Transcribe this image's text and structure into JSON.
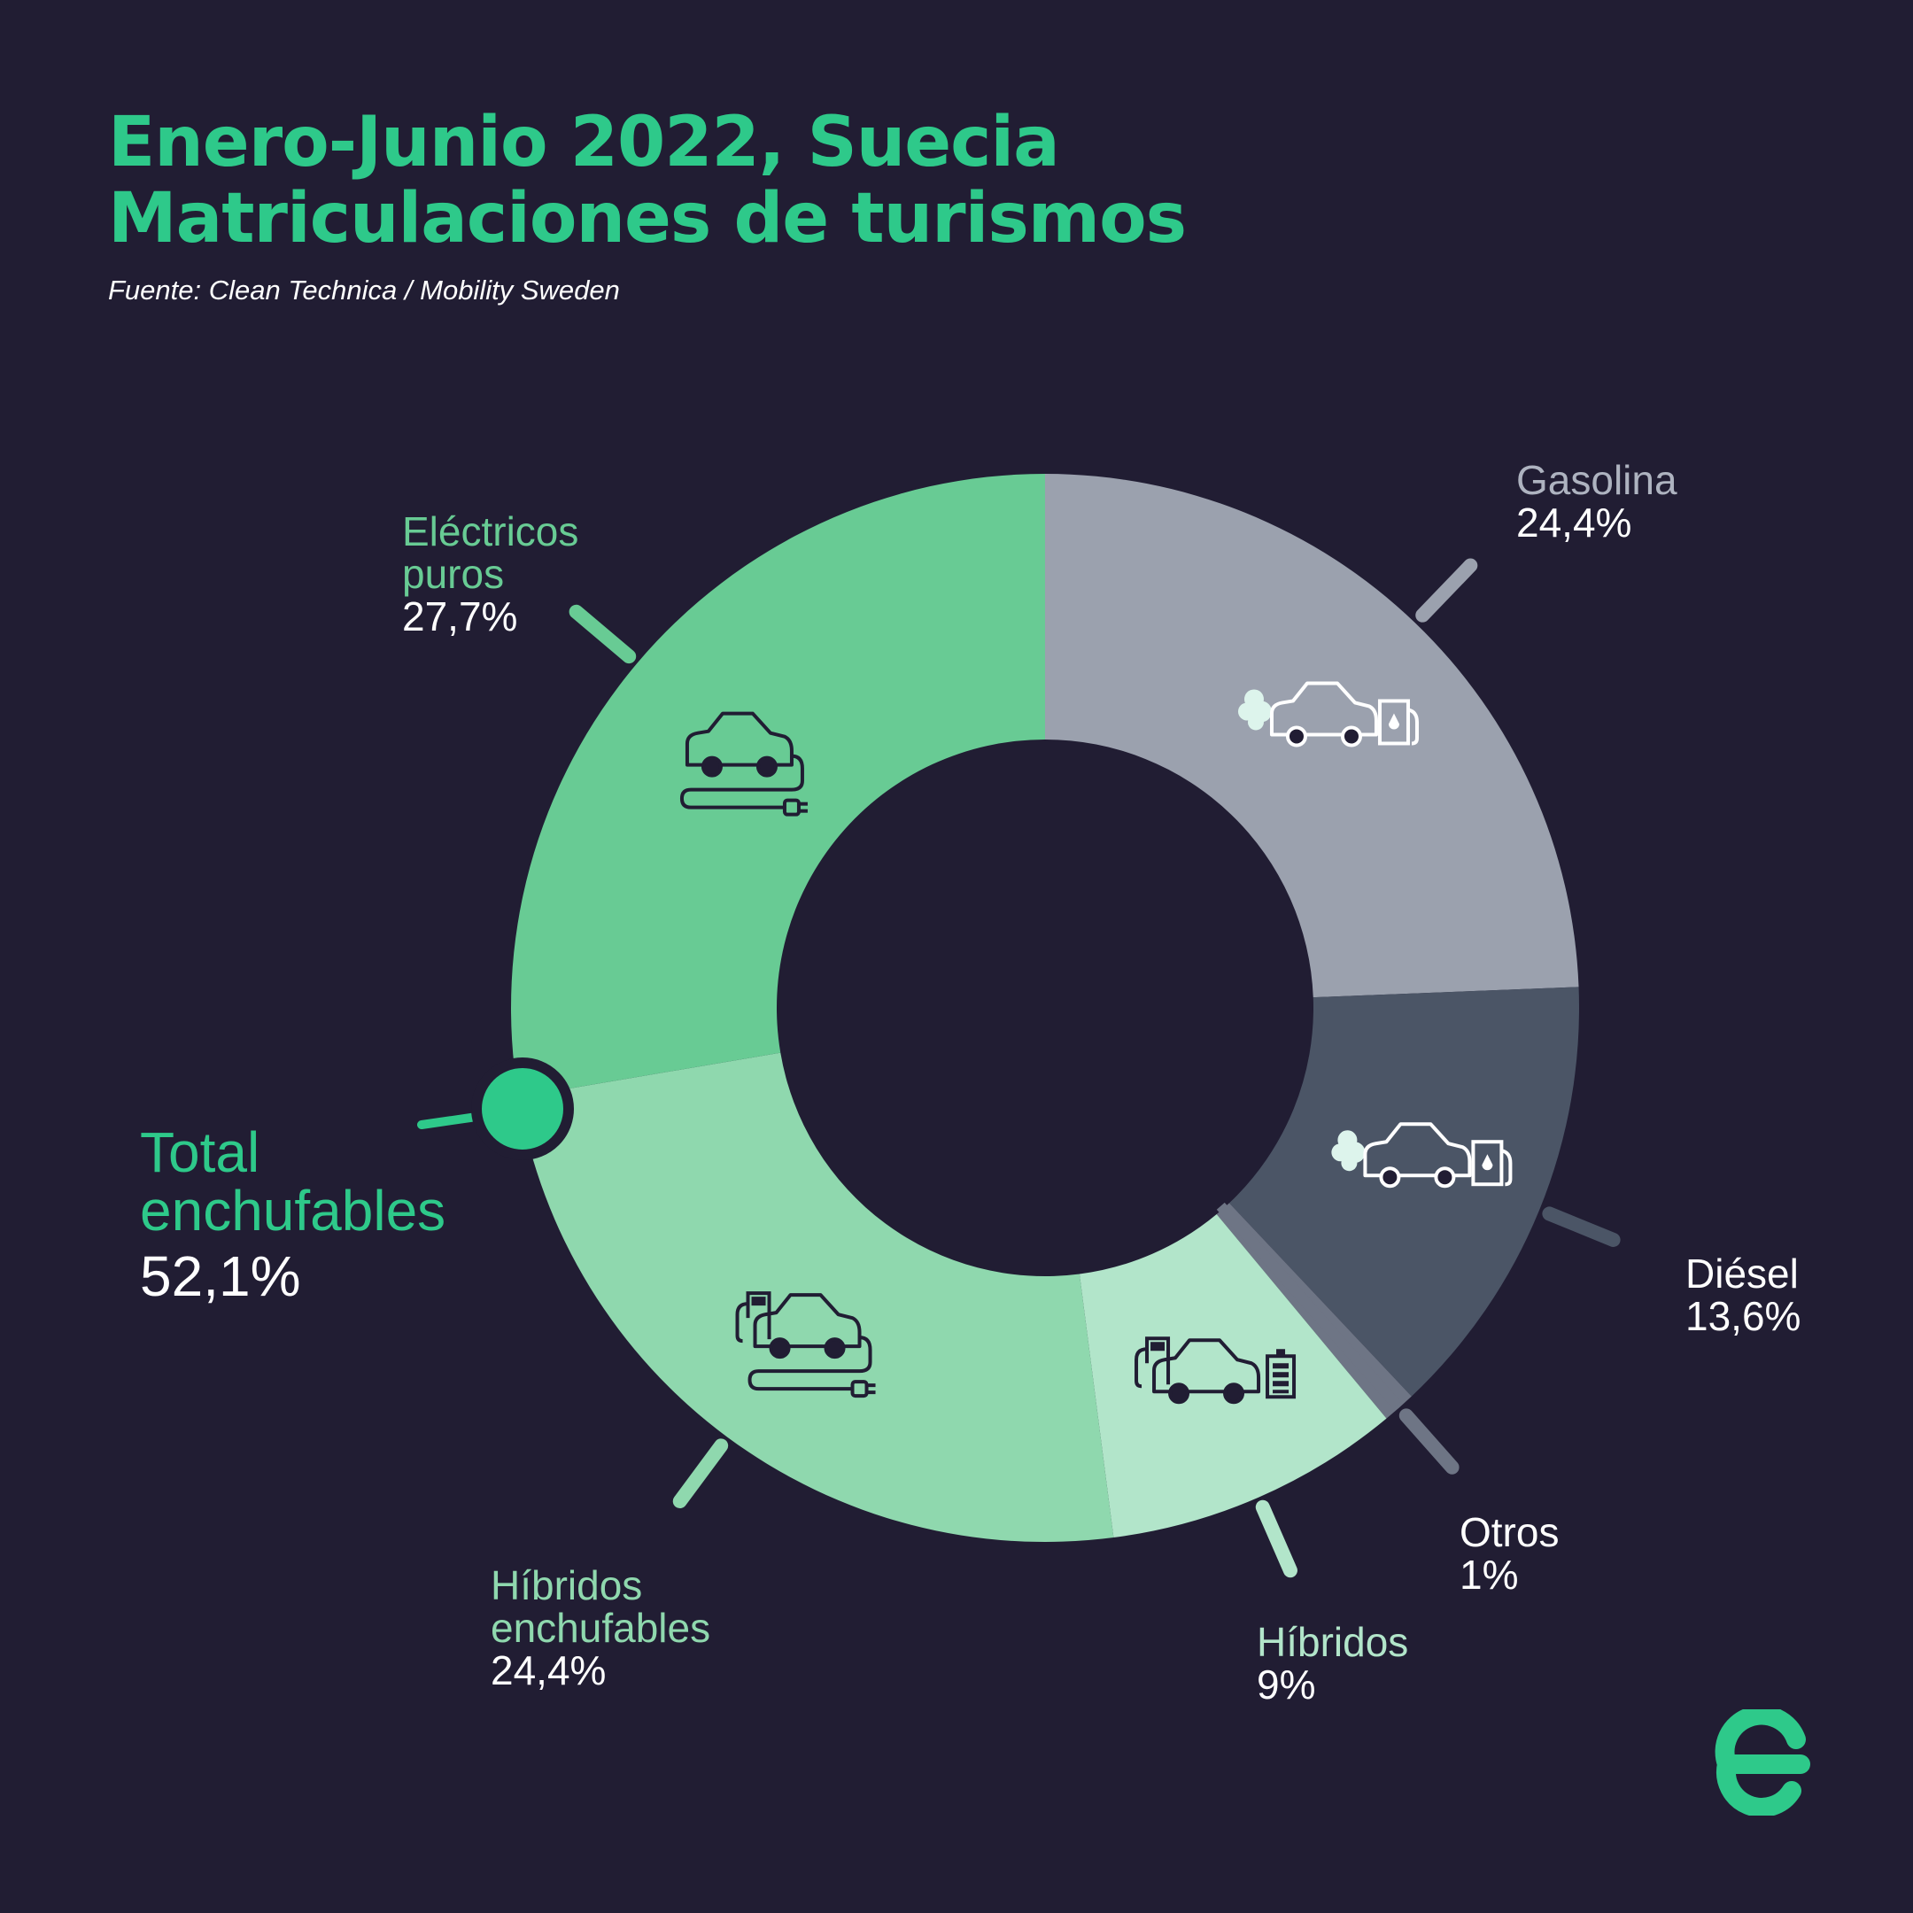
{
  "header": {
    "title_line1": "Enero-Junio 2022, Suecia",
    "title_line2": "Matriculaciones de turismos",
    "source": "Fuente: Clean Technica / Mobility Sweden"
  },
  "chart_data": {
    "type": "pie",
    "variant": "donut",
    "title": "Enero-Junio 2022, Suecia Matriculaciones de turismos",
    "unit": "%",
    "slices": [
      {
        "label": "Gasolina",
        "value": 24.4,
        "display": "24,4%",
        "color": "#9ba1ae",
        "label_color": "#aeb3c0",
        "icon": "gasoline-car-icon"
      },
      {
        "label": "Diésel",
        "value": 13.6,
        "display": "13,6%",
        "color": "#4b5566",
        "label_color": "#ffffff",
        "icon": "diesel-car-icon"
      },
      {
        "label": "Otros",
        "value": 1,
        "display": "1%",
        "color": "#6e7585",
        "label_color": "#ffffff",
        "icon": null
      },
      {
        "label": "Híbridos",
        "value": 9,
        "display": "9%",
        "color": "#b2e5ca",
        "label_color": "#b2e5ca",
        "icon": "hybrid-car-icon"
      },
      {
        "label": "Híbridos enchufables",
        "value": 24.4,
        "display": "24,4%",
        "color": "#8fd8ae",
        "label_color": "#8fd8ae",
        "icon": "plugin-hybrid-car-icon"
      },
      {
        "label": "Eléctricos puros",
        "value": 27.7,
        "display": "27,7%",
        "color": "#68cb94",
        "label_color": "#68cb94",
        "icon": "electric-car-icon"
      }
    ],
    "total": {
      "label": "Total enchufables",
      "value": 52.1,
      "display": "52,1%",
      "color": "#2ec98a"
    },
    "legend": "none"
  },
  "labels": {
    "gasolina": {
      "name": "Gasolina",
      "value": "24,4%"
    },
    "diesel": {
      "name": "Diésel",
      "value": "13,6%"
    },
    "otros": {
      "name": "Otros",
      "value": "1%"
    },
    "hibridos": {
      "name": "Híbridos",
      "value": "9%"
    },
    "hibridos_enchufables": {
      "line1": "Híbridos",
      "line2": "enchufables",
      "value": "24,4%"
    },
    "electricos_puros": {
      "line1": "Eléctricos",
      "line2": "puros",
      "value": "27,7%"
    },
    "total": {
      "line1": "Total",
      "line2": "enchufables",
      "value": "52,1%"
    }
  },
  "colors": {
    "background": "#211d33",
    "accent": "#2ec98a"
  },
  "logo": {
    "icon": "e-logo-icon"
  }
}
